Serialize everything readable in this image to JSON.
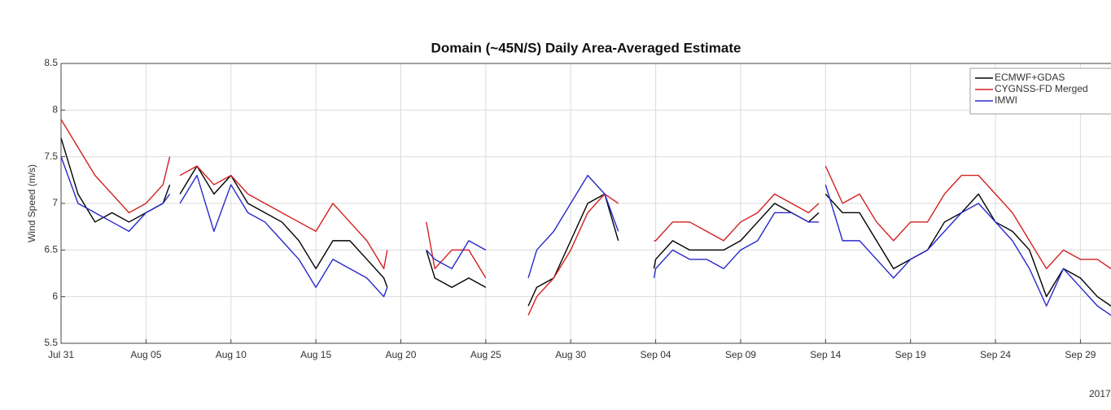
{
  "chart_data": {
    "type": "line",
    "title": "Domain (~45N/S) Daily Area-Averaged Estimate",
    "y_label": "Wind Speed (m/s)",
    "x_year_label": "2017",
    "x": [
      0,
      1,
      2,
      3,
      4,
      5,
      6,
      6.4,
      6.7,
      7,
      8,
      9,
      10,
      11,
      12,
      13,
      14,
      15,
      16,
      17,
      18,
      19,
      19.2,
      20,
      21.5,
      22,
      23,
      24,
      25,
      26,
      27.5,
      28,
      29,
      30,
      31,
      32,
      32.8,
      34,
      34.9,
      35,
      36,
      37,
      38,
      39,
      40,
      41,
      42,
      43,
      44,
      44.6,
      44.8,
      45,
      46,
      47,
      48,
      49,
      50,
      51,
      52,
      53,
      54,
      55,
      56,
      57,
      58,
      59,
      60,
      61,
      61.8
    ],
    "series": [
      {
        "name": "ECMWF+GDAS",
        "color": "#000000",
        "values": [
          7.7,
          7.1,
          6.8,
          6.9,
          6.8,
          6.9,
          7.0,
          7.2,
          null,
          7.1,
          7.4,
          7.1,
          7.3,
          7.0,
          6.9,
          6.8,
          6.6,
          6.3,
          6.6,
          6.6,
          6.4,
          6.2,
          6.1,
          null,
          6.5,
          6.2,
          6.1,
          6.2,
          6.1,
          null,
          5.9,
          6.1,
          6.2,
          6.6,
          7.0,
          7.1,
          6.6,
          null,
          6.3,
          6.4,
          6.6,
          6.5,
          6.5,
          6.5,
          6.6,
          6.8,
          7.0,
          6.9,
          6.8,
          6.9,
          null,
          7.1,
          6.9,
          6.9,
          6.6,
          6.3,
          6.4,
          6.5,
          6.8,
          6.9,
          7.1,
          6.8,
          6.7,
          6.5,
          6.0,
          6.3,
          6.2,
          6.0,
          5.9
        ]
      },
      {
        "name": "CYGNSS-FD Merged",
        "color": "#d42020",
        "values": [
          7.9,
          7.6,
          7.3,
          7.1,
          6.9,
          7.0,
          7.2,
          7.5,
          null,
          7.3,
          7.4,
          7.2,
          7.3,
          7.1,
          7.0,
          6.9,
          6.8,
          6.7,
          7.0,
          6.8,
          6.6,
          6.3,
          6.5,
          null,
          6.8,
          6.3,
          6.5,
          6.5,
          6.2,
          null,
          5.8,
          6.0,
          6.2,
          6.5,
          6.9,
          7.1,
          7.0,
          null,
          6.6,
          6.6,
          6.8,
          6.8,
          6.7,
          6.6,
          6.8,
          6.9,
          7.1,
          7.0,
          6.9,
          7.0,
          null,
          7.4,
          7.0,
          7.1,
          6.8,
          6.6,
          6.8,
          6.8,
          7.1,
          7.3,
          7.3,
          7.1,
          6.9,
          6.6,
          6.3,
          6.5,
          6.4,
          6.4,
          6.3
        ]
      },
      {
        "name": "IMWI",
        "color": "#2828cc",
        "values": [
          7.5,
          7.0,
          6.9,
          6.8,
          6.7,
          6.9,
          7.0,
          7.1,
          null,
          7.0,
          7.3,
          6.7,
          7.2,
          6.9,
          6.8,
          6.6,
          6.4,
          6.1,
          6.4,
          6.3,
          6.2,
          6.0,
          6.1,
          null,
          6.5,
          6.4,
          6.3,
          6.6,
          6.5,
          null,
          6.2,
          6.5,
          6.7,
          7.0,
          7.3,
          7.1,
          6.7,
          null,
          6.2,
          6.3,
          6.5,
          6.4,
          6.4,
          6.3,
          6.5,
          6.6,
          6.9,
          6.9,
          6.8,
          6.8,
          null,
          7.2,
          6.6,
          6.6,
          6.4,
          6.2,
          6.4,
          6.5,
          6.7,
          6.9,
          7.0,
          6.8,
          6.6,
          6.3,
          5.9,
          6.3,
          6.1,
          5.9,
          5.8
        ]
      }
    ],
    "xlim": [
      0,
      61.8
    ],
    "xticks": [
      {
        "value": 0,
        "label": "Jul 31"
      },
      {
        "value": 5,
        "label": "Aug 05"
      },
      {
        "value": 10,
        "label": "Aug 10"
      },
      {
        "value": 15,
        "label": "Aug 15"
      },
      {
        "value": 20,
        "label": "Aug 20"
      },
      {
        "value": 25,
        "label": "Aug 25"
      },
      {
        "value": 30,
        "label": "Aug 30"
      },
      {
        "value": 35,
        "label": "Sep 04"
      },
      {
        "value": 40,
        "label": "Sep 09"
      },
      {
        "value": 45,
        "label": "Sep 14"
      },
      {
        "value": 50,
        "label": "Sep 19"
      },
      {
        "value": 55,
        "label": "Sep 24"
      },
      {
        "value": 60,
        "label": "Sep 29"
      }
    ],
    "ylim": [
      5.5,
      8.5
    ],
    "yticks": [
      5.5,
      6,
      6.5,
      7,
      7.5,
      8,
      8.5
    ],
    "grid": true,
    "legend": "upper right"
  }
}
